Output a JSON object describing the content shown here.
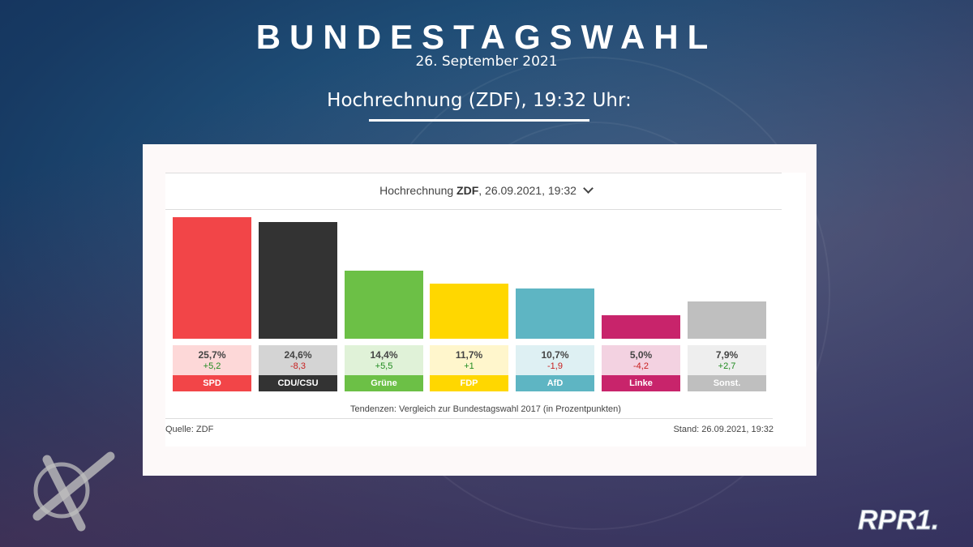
{
  "page": {
    "title": "BUNDESTAGSWAHL",
    "date": "26. September 2021",
    "subtitle": "Hochrechnung (ZDF), 19:32 Uhr:",
    "logo_text": "RPR1."
  },
  "widget": {
    "header_prefix": "Hochrechnung ",
    "header_source": "ZDF",
    "header_suffix": ", 26.09.2021, 19:32",
    "note": "Tendenzen: Vergleich zur Bundestagswahl 2017 (in Prozentpunkten)",
    "source": "Quelle: ZDF",
    "stand": "Stand: 26.09.2021, 19:32"
  },
  "chart_data": {
    "type": "bar",
    "title": "Hochrechnung ZDF, 26.09.2021, 19:32",
    "categories": [
      "SPD",
      "CDU/CSU",
      "Grüne",
      "FDP",
      "AfD",
      "Linke",
      "Sonst."
    ],
    "values": [
      25.7,
      24.6,
      14.4,
      11.7,
      10.7,
      5.0,
      7.9
    ],
    "value_labels": [
      "25,7%",
      "24,6%",
      "14,4%",
      "11,7%",
      "10,7%",
      "5,0%",
      "7,9%"
    ],
    "changes": [
      5.2,
      -8.3,
      5.5,
      1,
      -1.9,
      -4.2,
      2.7
    ],
    "change_labels": [
      "+5,2",
      "-8,3",
      "+5,5",
      "+1",
      "-1,9",
      "-4,2",
      "+2,7"
    ],
    "colors": [
      "#f24548",
      "#333333",
      "#6cc046",
      "#ffd700",
      "#5eb5c3",
      "#c8246b",
      "#bfbfbf"
    ],
    "light_colors": [
      "#fdd8d8",
      "#d4d4d4",
      "#e0f2d8",
      "#fff6cc",
      "#def0f3",
      "#f3d2e1",
      "#eeeeee"
    ],
    "ylim": [
      0,
      25.7
    ]
  }
}
